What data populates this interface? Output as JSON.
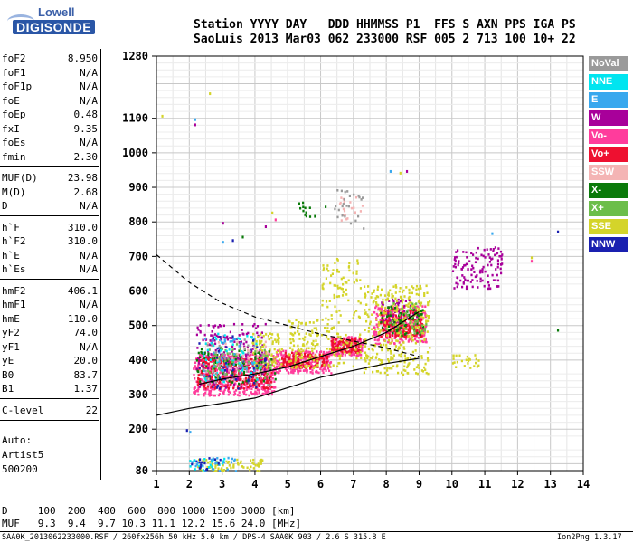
{
  "logo": {
    "line1": "Lowell",
    "line2": "DIGISONDE"
  },
  "header": {
    "labels": "Station YYYY DAY   DDD HHMMSS P1  FFS S AXN PPS IGA PS",
    "values": "SaoLuis 2013 Mar03 062 233000 RSF 005 2 713 100 10+ 22"
  },
  "params": [
    {
      "label": "foF2",
      "value": "8.950"
    },
    {
      "label": "foF1",
      "value": "N/A"
    },
    {
      "label": "foF1p",
      "value": "N/A"
    },
    {
      "label": "foE",
      "value": "N/A"
    },
    {
      "label": "foEp",
      "value": "0.48"
    },
    {
      "label": "fxI",
      "value": "9.35"
    },
    {
      "label": "foEs",
      "value": "N/A"
    },
    {
      "label": "fmin",
      "value": "2.30"
    },
    {
      "label": "MUF(D)",
      "value": "23.98"
    },
    {
      "label": "M(D)",
      "value": "2.68"
    },
    {
      "label": "D",
      "value": "N/A"
    },
    {
      "label": "h`F",
      "value": "310.0"
    },
    {
      "label": "h`F2",
      "value": "310.0"
    },
    {
      "label": "h`E",
      "value": "N/A"
    },
    {
      "label": "h`Es",
      "value": "N/A"
    },
    {
      "label": "hmF2",
      "value": "406.1"
    },
    {
      "label": "hmF1",
      "value": "N/A"
    },
    {
      "label": "hmE",
      "value": "110.0"
    },
    {
      "label": "yF2",
      "value": "74.0"
    },
    {
      "label": "yF1",
      "value": "N/A"
    },
    {
      "label": "yE",
      "value": "20.0"
    },
    {
      "label": "B0",
      "value": "83.7"
    },
    {
      "label": "B1",
      "value": "1.37"
    },
    {
      "label": "C-level",
      "value": "22"
    }
  ],
  "autoscale": {
    "line1": "Auto:",
    "line2": "Artist5",
    "line3": "500200"
  },
  "legend": [
    {
      "label": "NoVal",
      "color": "#9a9a9a"
    },
    {
      "label": "NNE",
      "color": "#00e5f0"
    },
    {
      "label": "E",
      "color": "#38a8ee"
    },
    {
      "label": "W",
      "color": "#a8009a"
    },
    {
      "label": "Vo-",
      "color": "#ff3c9c"
    },
    {
      "label": "Vo+",
      "color": "#ee1030"
    },
    {
      "label": "SSW",
      "color": "#f4b4b4"
    },
    {
      "label": "X-",
      "color": "#0a7a0a"
    },
    {
      "label": "X+",
      "color": "#6cbe4a"
    },
    {
      "label": "SSE",
      "color": "#d4d42a"
    },
    {
      "label": "NNW",
      "color": "#1a20b0"
    }
  ],
  "footer": {
    "d_row": "D     100  200  400  600  800 1000 1500 3000 [km]",
    "muf_row": "MUF   9.3  9.4  9.7 10.3 11.1 12.2 15.6 24.0 [MHz]",
    "file_info": "SAA0K_2013062233000.RSF / 260fx256h 50 kHz 5.0 km / DPS-4 SAA0K 903 / 2.6 S 315.8 E",
    "version": "Ion2Png 1.3.17"
  },
  "chart_data": {
    "type": "scatter",
    "title": "",
    "xlabel": "",
    "ylabel": "",
    "xlim": [
      1,
      14
    ],
    "ylim": [
      80,
      1280
    ],
    "x_ticks": [
      1,
      2,
      3,
      4,
      5,
      6,
      7,
      8,
      9,
      10,
      11,
      12,
      13,
      14
    ],
    "y_ticks": [
      80,
      200,
      300,
      400,
      500,
      600,
      700,
      800,
      900,
      1000,
      1100,
      1280
    ],
    "grid": true,
    "legend_position": "right",
    "series": [
      {
        "color": "#ff3c9c",
        "clusters": [
          {
            "f": [
              2.1,
              4.6
            ],
            "h": [
              300,
              420
            ],
            "n": 520
          },
          {
            "f": [
              4.6,
              6.3
            ],
            "h": [
              365,
              430
            ],
            "n": 230
          },
          {
            "f": [
              6.3,
              7.3
            ],
            "h": [
              415,
              470
            ],
            "n": 150
          },
          {
            "f": [
              7.6,
              9.2
            ],
            "h": [
              450,
              560
            ],
            "n": 280
          }
        ]
      },
      {
        "color": "#ee1030",
        "clusters": [
          {
            "f": [
              2.2,
              4.5
            ],
            "h": [
              320,
              410
            ],
            "n": 260
          },
          {
            "f": [
              4.8,
              6.2
            ],
            "h": [
              380,
              425
            ],
            "n": 140
          },
          {
            "f": [
              6.3,
              7.2
            ],
            "h": [
              425,
              465
            ],
            "n": 120
          },
          {
            "f": [
              7.8,
              9.1
            ],
            "h": [
              470,
              550
            ],
            "n": 220
          }
        ]
      },
      {
        "color": "#a8009a",
        "clusters": [
          {
            "f": [
              2.2,
              4.3
            ],
            "h": [
              320,
              510
            ],
            "n": 170
          },
          {
            "f": [
              10.0,
              11.5
            ],
            "h": [
              610,
              730
            ],
            "n": 120
          },
          {
            "f": [
              7.8,
              9.0
            ],
            "h": [
              480,
              580
            ],
            "n": 60
          }
        ]
      },
      {
        "color": "#d4d42a",
        "clusters": [
          {
            "f": [
              3.9,
              4.8
            ],
            "h": [
              380,
              480
            ],
            "n": 90
          },
          {
            "f": [
              5.0,
              5.9
            ],
            "h": [
              380,
              520
            ],
            "n": 110
          },
          {
            "f": [
              6.0,
              7.2
            ],
            "h": [
              380,
              700
            ],
            "n": 140
          },
          {
            "f": [
              7.3,
              9.3
            ],
            "h": [
              360,
              620
            ],
            "n": 330
          },
          {
            "f": [
              10.0,
              10.8
            ],
            "h": [
              380,
              420
            ],
            "n": 25
          },
          {
            "f": [
              2.2,
              4.2
            ],
            "h": [
              82,
              118
            ],
            "n": 70
          }
        ]
      },
      {
        "color": "#0a7a0a",
        "clusters": [
          {
            "f": [
              2.2,
              4.6
            ],
            "h": [
              330,
              440
            ],
            "n": 90
          },
          {
            "f": [
              7.8,
              9.1
            ],
            "h": [
              470,
              560
            ],
            "n": 60
          },
          {
            "f": [
              5.3,
              6.2
            ],
            "h": [
              810,
              860
            ],
            "n": 12
          }
        ]
      },
      {
        "color": "#6cbe4a",
        "clusters": [
          {
            "f": [
              2.5,
              4.5
            ],
            "h": [
              350,
              450
            ],
            "n": 70
          },
          {
            "f": [
              7.9,
              9.2
            ],
            "h": [
              480,
              570
            ],
            "n": 40
          }
        ]
      },
      {
        "color": "#00e5f0",
        "clusters": [
          {
            "f": [
              2.4,
              4.2
            ],
            "h": [
              340,
              480
            ],
            "n": 50
          },
          {
            "f": [
              2.0,
              3.2
            ],
            "h": [
              82,
              120
            ],
            "n": 20
          }
        ]
      },
      {
        "color": "#38a8ee",
        "clusters": [
          {
            "f": [
              2.4,
              4.0
            ],
            "h": [
              350,
              470
            ],
            "n": 40
          },
          {
            "f": [
              2.0,
              3.4
            ],
            "h": [
              82,
              120
            ],
            "n": 25
          }
        ]
      },
      {
        "color": "#1a20b0",
        "clusters": [
          {
            "f": [
              2.2,
              4.3
            ],
            "h": [
              320,
              480
            ],
            "n": 40
          },
          {
            "f": [
              2.0,
              3.0
            ],
            "h": [
              82,
              120
            ],
            "n": 15
          }
        ]
      },
      {
        "color": "#f4b4b4",
        "clusters": [
          {
            "f": [
              2.5,
              4.5
            ],
            "h": [
              340,
              460
            ],
            "n": 35
          },
          {
            "f": [
              6.5,
              7.3
            ],
            "h": [
              800,
              880
            ],
            "n": 20
          }
        ]
      },
      {
        "color": "#9a9a9a",
        "clusters": [
          {
            "f": [
              2.3,
              4.5
            ],
            "h": [
              330,
              470
            ],
            "n": 40
          },
          {
            "f": [
              6.4,
              7.3
            ],
            "h": [
              780,
              900
            ],
            "n": 25
          }
        ]
      }
    ],
    "sparse_points": [
      {
        "f": 1.15,
        "h": 1110,
        "color": "#d4d42a"
      },
      {
        "f": 2.15,
        "h": 1100,
        "color": "#38a8ee"
      },
      {
        "f": 2.15,
        "h": 1085,
        "color": "#a8009a"
      },
      {
        "f": 2.6,
        "h": 1175,
        "color": "#d4d42a"
      },
      {
        "f": 3.0,
        "h": 800,
        "color": "#a8009a"
      },
      {
        "f": 3.0,
        "h": 745,
        "color": "#38a8ee"
      },
      {
        "f": 3.3,
        "h": 750,
        "color": "#1a20b0"
      },
      {
        "f": 3.6,
        "h": 760,
        "color": "#0a7a0a"
      },
      {
        "f": 4.3,
        "h": 790,
        "color": "#a8009a"
      },
      {
        "f": 4.5,
        "h": 830,
        "color": "#d4d42a"
      },
      {
        "f": 4.6,
        "h": 810,
        "color": "#ff3c9c"
      },
      {
        "f": 5.8,
        "h": 820,
        "color": "#0a7a0a"
      },
      {
        "f": 8.1,
        "h": 950,
        "color": "#38a8ee"
      },
      {
        "f": 8.4,
        "h": 945,
        "color": "#d4d42a"
      },
      {
        "f": 8.6,
        "h": 950,
        "color": "#a8009a"
      },
      {
        "f": 11.2,
        "h": 770,
        "color": "#38a8ee"
      },
      {
        "f": 12.4,
        "h": 700,
        "color": "#d4d42a"
      },
      {
        "f": 12.4,
        "h": 690,
        "color": "#ff3c9c"
      },
      {
        "f": 13.2,
        "h": 775,
        "color": "#1a20b0"
      },
      {
        "f": 13.2,
        "h": 490,
        "color": "#0a7a0a"
      },
      {
        "f": 1.9,
        "h": 200,
        "color": "#1a20b0"
      },
      {
        "f": 2.0,
        "h": 195,
        "color": "#38a8ee"
      },
      {
        "f": 7.0,
        "h": 420,
        "color": "#ff3c9c"
      },
      {
        "f": 7.2,
        "h": 410,
        "color": "#d4d42a"
      }
    ],
    "trace_solid": {
      "f": [
        1.0,
        2.0,
        3.0,
        4.0,
        5.0,
        6.0,
        7.0,
        8.0,
        9.0
      ],
      "h": [
        240,
        260,
        275,
        290,
        320,
        350,
        370,
        390,
        405
      ]
    },
    "trace_solid_upper": {
      "f": [
        2.3,
        3.0,
        4.0,
        5.0,
        6.0,
        7.0,
        8.0,
        9.0
      ],
      "h": [
        330,
        345,
        360,
        380,
        410,
        440,
        480,
        540
      ]
    },
    "trace_dashed": {
      "f": [
        1.0,
        2.0,
        3.0,
        4.0,
        5.0,
        6.0,
        7.0,
        8.0,
        9.0
      ],
      "h": [
        705,
        625,
        565,
        525,
        500,
        475,
        455,
        435,
        410
      ]
    }
  }
}
